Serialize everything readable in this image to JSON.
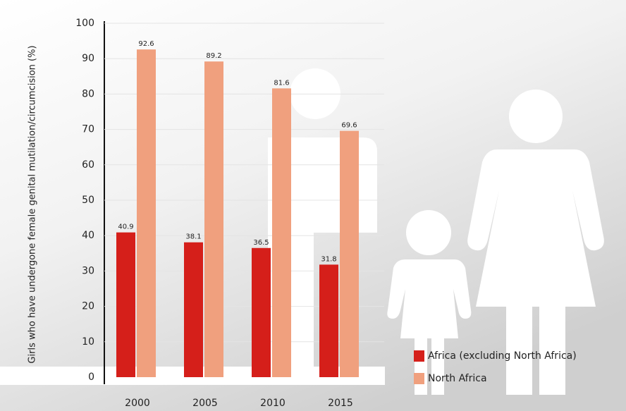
{
  "chart_data": {
    "type": "bar",
    "y_label": "Girls who have undergone female genital mutilation/circumcision (%)",
    "categories": [
      "2000",
      "2005",
      "2010",
      "2015"
    ],
    "series": [
      {
        "name": "Africa (excluding North Africa)",
        "color": "#d51f1a",
        "values": [
          40.9,
          38.1,
          36.5,
          31.8
        ]
      },
      {
        "name": "North Africa",
        "color": "#f0a07e",
        "values": [
          92.6,
          89.2,
          81.6,
          69.6
        ]
      }
    ],
    "ylim": [
      0,
      100
    ],
    "yticks": [
      0,
      10,
      20,
      30,
      40,
      50,
      60,
      70,
      80,
      90,
      100
    ],
    "grid": true
  }
}
